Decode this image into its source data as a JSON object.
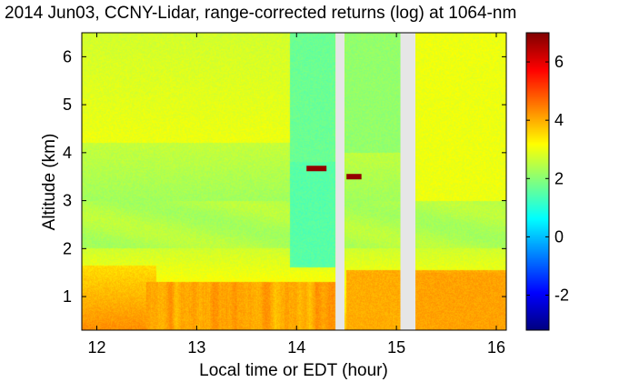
{
  "chart_data": {
    "type": "heatmap",
    "title": "2014 Jun03, CCNY-Lidar, range-corrected returns (log) at 1064-nm",
    "xlabel": "Local time or EDT (hour)",
    "ylabel": "Altitude (km)",
    "xlim": [
      11.85,
      16.1
    ],
    "ylim": [
      0.3,
      6.5
    ],
    "xticks": [
      {
        "value": 12,
        "label": "12"
      },
      {
        "value": 13,
        "label": "13"
      },
      {
        "value": 14,
        "label": "14"
      },
      {
        "value": 15,
        "label": "15"
      },
      {
        "value": 16,
        "label": "16"
      }
    ],
    "yticks": [
      {
        "value": 1,
        "label": "1"
      },
      {
        "value": 2,
        "label": "2"
      },
      {
        "value": 3,
        "label": "3"
      },
      {
        "value": 4,
        "label": "4"
      },
      {
        "value": 5,
        "label": "5"
      },
      {
        "value": 6,
        "label": "6"
      }
    ],
    "colorbar": {
      "colormap": "jet",
      "range": [
        -3.2,
        7
      ],
      "ticks": [
        {
          "value": -2,
          "label": "-2"
        },
        {
          "value": 0,
          "label": "0"
        },
        {
          "value": 2,
          "label": "2"
        },
        {
          "value": 4,
          "label": "4"
        },
        {
          "value": 6,
          "label": "6"
        }
      ]
    },
    "data_gaps": [
      {
        "x_start": 14.39,
        "x_end": 14.48
      },
      {
        "x_start": 15.04,
        "x_end": 15.19
      }
    ],
    "cloud_features": [
      {
        "x_start": 14.1,
        "x_end": 14.3,
        "y": 3.67,
        "value": 6.8
      },
      {
        "x_start": 14.5,
        "x_end": 14.65,
        "y": 3.5,
        "value": 6.8
      }
    ],
    "grid": false
  }
}
